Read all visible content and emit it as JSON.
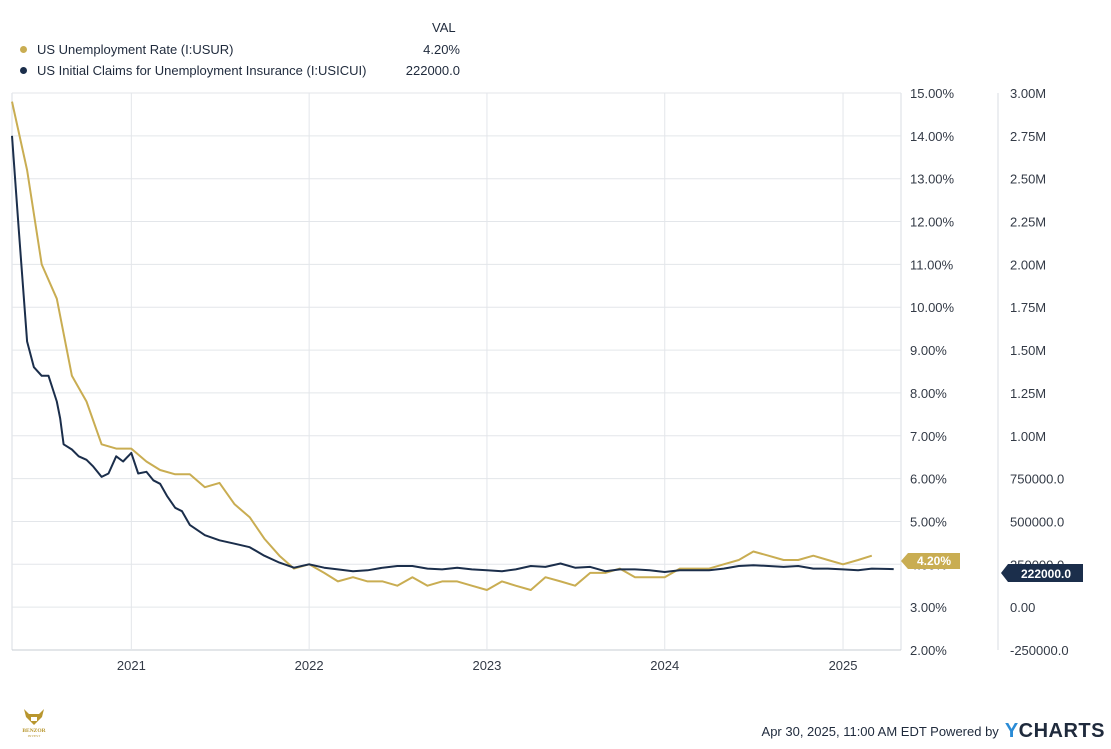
{
  "legend": {
    "value_header": "VAL",
    "items": [
      {
        "name": "US Unemployment Rate (I:USUR)",
        "value": "4.20%",
        "color": "#c9ad52"
      },
      {
        "name": "US Initial Claims for Unemployment Insurance (I:USICUI)",
        "value": "222000.0",
        "color": "#1b2e4b"
      }
    ]
  },
  "end_labels": {
    "left": "4.20%",
    "right": "222000.0"
  },
  "footer": {
    "timestamp": "Apr 30, 2025, 11:00 AM EDT Powered by",
    "brand_y": "Y",
    "brand_rest": "CHARTS"
  },
  "logo": {
    "line1": "BENZOR",
    "line2": "INVEST"
  },
  "chart_data": {
    "type": "line",
    "x_ticks": [
      "2021",
      "2022",
      "2023",
      "2024",
      "2025"
    ],
    "xlim": [
      "2020-05-01",
      "2025-04-30"
    ],
    "left_axis": {
      "ticks": [
        "15.00%",
        "14.00%",
        "13.00%",
        "12.00%",
        "11.00%",
        "10.00%",
        "9.00%",
        "8.00%",
        "7.00%",
        "6.00%",
        "5.00%",
        "4.00%",
        "3.00%",
        "2.00%"
      ],
      "ylim": [
        2.0,
        15.0
      ]
    },
    "right_axis": {
      "ticks": [
        "3.00M",
        "2.75M",
        "2.50M",
        "2.25M",
        "2.00M",
        "1.75M",
        "1.50M",
        "1.25M",
        "1.00M",
        "750000.0",
        "500000.0",
        "250000.0",
        "0.00",
        "-250000.0"
      ],
      "ylim": [
        -250000,
        3000000
      ]
    },
    "grid": true,
    "series": [
      {
        "name": "US Unemployment Rate (I:USUR)",
        "axis": "left",
        "color": "#c9ad52",
        "x": [
          "2020-05-01",
          "2020-06-01",
          "2020-07-01",
          "2020-08-01",
          "2020-09-01",
          "2020-10-01",
          "2020-11-01",
          "2020-12-01",
          "2021-01-01",
          "2021-02-01",
          "2021-03-01",
          "2021-04-01",
          "2021-05-01",
          "2021-06-01",
          "2021-07-01",
          "2021-08-01",
          "2021-09-01",
          "2021-10-01",
          "2021-11-01",
          "2021-12-01",
          "2022-01-01",
          "2022-02-01",
          "2022-03-01",
          "2022-04-01",
          "2022-05-01",
          "2022-06-01",
          "2022-07-01",
          "2022-08-01",
          "2022-09-01",
          "2022-10-01",
          "2022-11-01",
          "2022-12-01",
          "2023-01-01",
          "2023-02-01",
          "2023-03-01",
          "2023-04-01",
          "2023-05-01",
          "2023-06-01",
          "2023-07-01",
          "2023-08-01",
          "2023-09-01",
          "2023-10-01",
          "2023-11-01",
          "2023-12-01",
          "2024-01-01",
          "2024-02-01",
          "2024-03-01",
          "2024-04-01",
          "2024-05-01",
          "2024-06-01",
          "2024-07-01",
          "2024-08-01",
          "2024-09-01",
          "2024-10-01",
          "2024-11-01",
          "2024-12-01",
          "2025-01-01",
          "2025-02-01",
          "2025-03-01"
        ],
        "values": [
          14.8,
          13.2,
          11.0,
          10.2,
          8.4,
          7.8,
          6.8,
          6.7,
          6.7,
          6.4,
          6.2,
          6.1,
          6.1,
          5.8,
          5.9,
          5.4,
          5.1,
          4.6,
          4.2,
          3.9,
          4.0,
          3.8,
          3.6,
          3.7,
          3.6,
          3.6,
          3.5,
          3.7,
          3.5,
          3.6,
          3.6,
          3.5,
          3.4,
          3.6,
          3.5,
          3.4,
          3.7,
          3.6,
          3.5,
          3.8,
          3.8,
          3.9,
          3.7,
          3.7,
          3.7,
          3.9,
          3.9,
          3.9,
          4.0,
          4.1,
          4.3,
          4.2,
          4.1,
          4.1,
          4.2,
          4.1,
          4.0,
          4.1,
          4.2
        ]
      },
      {
        "name": "US Initial Claims for Unemployment Insurance (I:USICUI)",
        "axis": "right",
        "color": "#1b2e4b",
        "x": [
          "2020-05-01",
          "2020-05-15",
          "2020-06-01",
          "2020-06-15",
          "2020-07-01",
          "2020-07-15",
          "2020-08-01",
          "2020-08-08",
          "2020-08-15",
          "2020-09-01",
          "2020-09-15",
          "2020-10-01",
          "2020-10-15",
          "2020-11-01",
          "2020-11-15",
          "2020-12-01",
          "2020-12-15",
          "2021-01-01",
          "2021-01-15",
          "2021-02-01",
          "2021-02-15",
          "2021-03-01",
          "2021-03-15",
          "2021-04-01",
          "2021-04-15",
          "2021-05-01",
          "2021-06-01",
          "2021-07-01",
          "2021-08-01",
          "2021-09-01",
          "2021-10-01",
          "2021-11-01",
          "2021-12-01",
          "2022-01-01",
          "2022-02-01",
          "2022-03-01",
          "2022-04-01",
          "2022-05-01",
          "2022-06-01",
          "2022-07-01",
          "2022-08-01",
          "2022-09-01",
          "2022-10-01",
          "2022-11-01",
          "2022-12-01",
          "2023-01-01",
          "2023-02-01",
          "2023-03-01",
          "2023-04-01",
          "2023-05-01",
          "2023-06-01",
          "2023-07-01",
          "2023-08-01",
          "2023-09-01",
          "2023-10-01",
          "2023-11-01",
          "2023-12-01",
          "2024-01-01",
          "2024-02-01",
          "2024-03-01",
          "2024-04-01",
          "2024-05-01",
          "2024-06-01",
          "2024-07-01",
          "2024-08-01",
          "2024-09-01",
          "2024-10-01",
          "2024-11-01",
          "2024-12-01",
          "2025-01-01",
          "2025-02-01",
          "2025-03-01",
          "2025-04-15"
        ],
        "values": [
          2750000,
          2200000,
          1550000,
          1400000,
          1350000,
          1350000,
          1200000,
          1100000,
          950000,
          920000,
          880000,
          860000,
          820000,
          760000,
          780000,
          880000,
          850000,
          900000,
          780000,
          790000,
          740000,
          720000,
          650000,
          580000,
          560000,
          480000,
          420000,
          390000,
          370000,
          350000,
          300000,
          260000,
          230000,
          250000,
          230000,
          220000,
          210000,
          215000,
          230000,
          240000,
          240000,
          225000,
          220000,
          230000,
          220000,
          215000,
          210000,
          220000,
          240000,
          235000,
          255000,
          230000,
          235000,
          210000,
          220000,
          220000,
          215000,
          205000,
          215000,
          215000,
          215000,
          225000,
          240000,
          245000,
          240000,
          235000,
          240000,
          225000,
          225000,
          220000,
          215000,
          225000,
          222000
        ]
      }
    ]
  }
}
